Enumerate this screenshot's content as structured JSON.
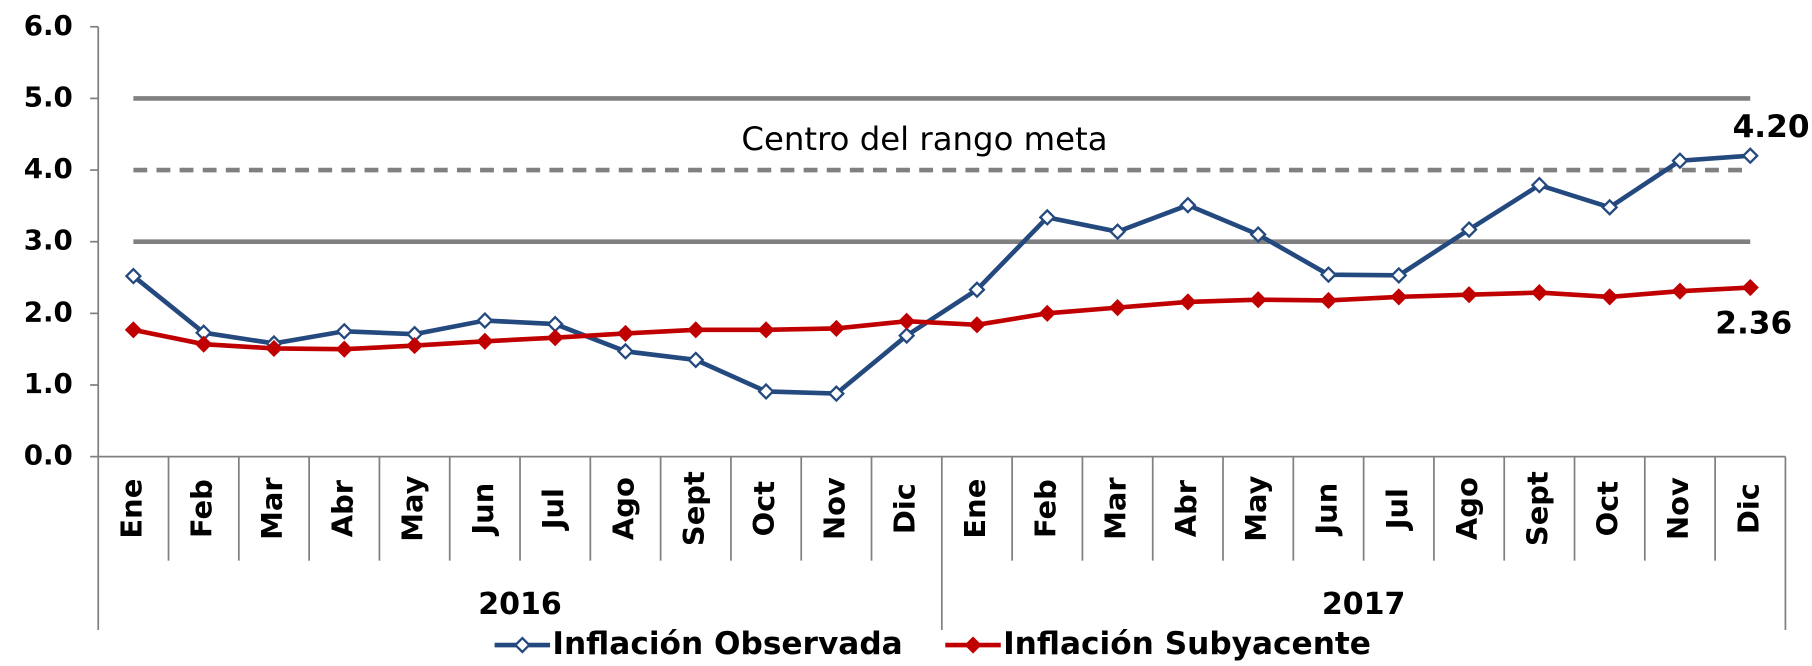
{
  "chart_data": {
    "type": "line",
    "category_groups": [
      {
        "name": "2016",
        "categories": [
          "Ene",
          "Feb",
          "Mar",
          "Abr",
          "May",
          "Jun",
          "Jul",
          "Ago",
          "Sept",
          "Oct",
          "Nov",
          "Dic"
        ]
      },
      {
        "name": "2017",
        "categories": [
          "Ene",
          "Feb",
          "Mar",
          "Abr",
          "May",
          "Jun",
          "Jul",
          "Ago",
          "Sept",
          "Oct",
          "Nov",
          "Dic"
        ]
      }
    ],
    "series": [
      {
        "name": "Inflación Observada",
        "color": "#24497f",
        "marker": "open-diamond",
        "values": [
          2.52,
          1.73,
          1.58,
          1.75,
          1.71,
          1.9,
          1.85,
          1.47,
          1.35,
          0.91,
          0.88,
          1.69,
          2.33,
          3.34,
          3.14,
          3.51,
          3.1,
          2.54,
          2.53,
          3.17,
          3.79,
          3.48,
          4.13,
          4.2
        ],
        "value_labels": [
          null,
          null,
          null,
          null,
          null,
          null,
          null,
          null,
          null,
          null,
          null,
          null,
          null,
          null,
          null,
          null,
          null,
          null,
          null,
          null,
          null,
          null,
          null,
          "4.20"
        ]
      },
      {
        "name": "Inflación Subyacente",
        "color": "#c00000",
        "marker": "filled-diamond",
        "values": [
          1.77,
          1.57,
          1.51,
          1.5,
          1.55,
          1.61,
          1.66,
          1.72,
          1.77,
          1.77,
          1.79,
          1.89,
          1.84,
          2.0,
          2.08,
          2.16,
          2.19,
          2.18,
          2.23,
          2.26,
          2.29,
          2.23,
          2.31,
          2.36
        ],
        "value_labels": [
          null,
          null,
          null,
          null,
          null,
          null,
          null,
          null,
          null,
          null,
          null,
          null,
          null,
          null,
          null,
          null,
          null,
          null,
          null,
          null,
          null,
          null,
          null,
          "2.36"
        ]
      }
    ],
    "reference_lines": [
      {
        "value": 5,
        "style": "solid",
        "color": "#808080"
      },
      {
        "value": 4,
        "style": "dashed",
        "color": "#808080",
        "label": "Centro del rango meta"
      },
      {
        "value": 3,
        "style": "solid",
        "color": "#808080"
      }
    ],
    "ylim": [
      0,
      6
    ],
    "yticks": [
      {
        "value": 0,
        "label": "0.0"
      },
      {
        "value": 1,
        "label": "1.0"
      },
      {
        "value": 2,
        "label": "2.0"
      },
      {
        "value": 3,
        "label": "3.0"
      },
      {
        "value": 4,
        "label": "4.0"
      },
      {
        "value": 5,
        "label": "5.0"
      },
      {
        "value": 6,
        "label": "6.0"
      }
    ],
    "legend": "bottom"
  }
}
